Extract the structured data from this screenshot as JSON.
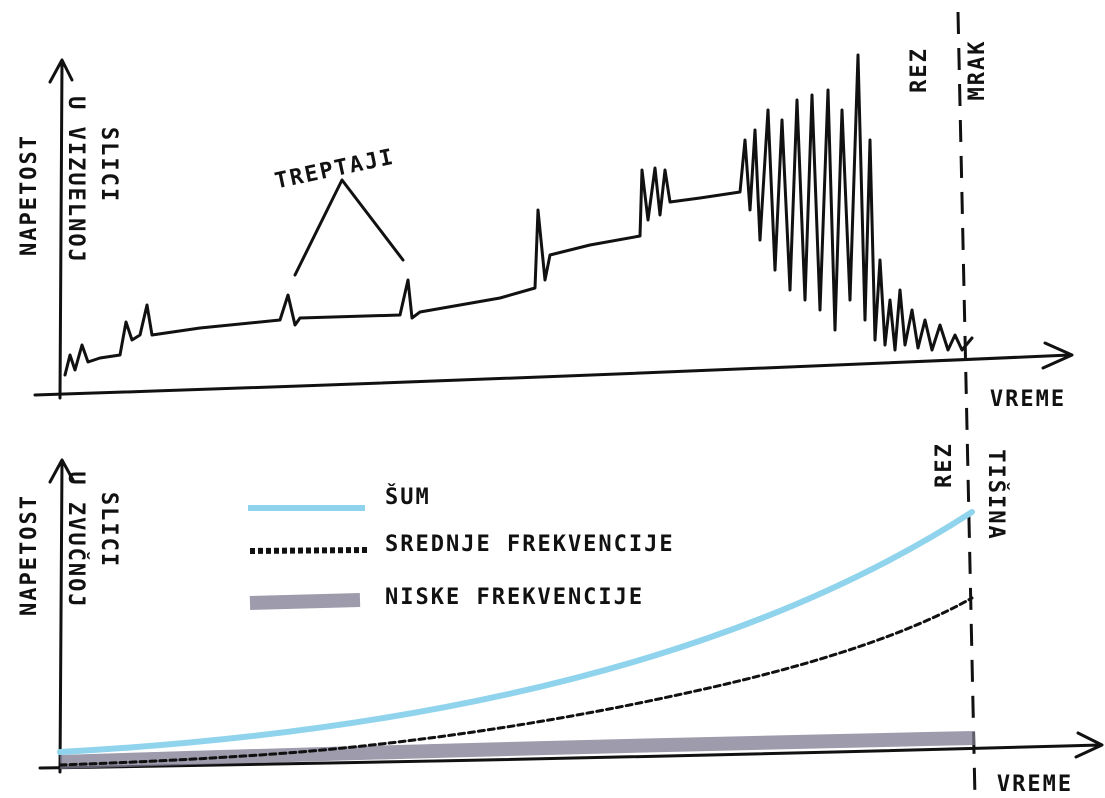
{
  "top_panel": {
    "y_label": [
      "NAPETOST",
      "U VIZUELNOJ",
      "SLICI"
    ],
    "annotation": "TREPTAJI",
    "cut_label": "REZ",
    "after_cut_label": "MRAK",
    "x_label": "VREME"
  },
  "bottom_panel": {
    "y_label": [
      "NAPETOST",
      "U ZVUČNOJ",
      "SLICI"
    ],
    "legend": [
      "ŠUM",
      "SREDNJE FREKVENCIJE",
      "NISKE FREKVENCIJE"
    ],
    "cut_label": "REZ",
    "after_cut_label": "TIŠINA",
    "x_label": "VREME"
  }
}
